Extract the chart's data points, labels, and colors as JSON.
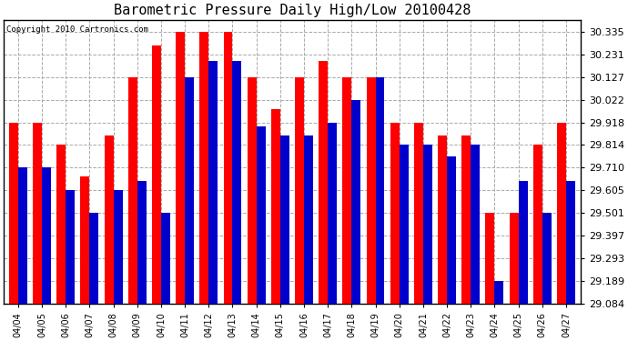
{
  "title": "Barometric Pressure Daily High/Low 20100428",
  "copyright": "Copyright 2010 Cartronics.com",
  "dates": [
    "04/04",
    "04/05",
    "04/06",
    "04/07",
    "04/08",
    "04/09",
    "04/10",
    "04/11",
    "04/12",
    "04/13",
    "04/14",
    "04/15",
    "04/16",
    "04/17",
    "04/18",
    "04/19",
    "04/20",
    "04/21",
    "04/22",
    "04/23",
    "04/24",
    "04/25",
    "04/26",
    "04/27"
  ],
  "highs": [
    29.918,
    29.918,
    29.814,
    29.67,
    29.856,
    30.127,
    30.27,
    30.335,
    30.335,
    30.335,
    30.127,
    29.98,
    30.127,
    30.2,
    30.127,
    30.127,
    29.918,
    29.918,
    29.856,
    29.856,
    29.501,
    29.501,
    29.814,
    29.918
  ],
  "lows": [
    29.71,
    29.71,
    29.605,
    29.501,
    29.605,
    29.65,
    29.501,
    30.127,
    30.2,
    30.2,
    29.9,
    29.856,
    29.856,
    29.918,
    30.022,
    30.127,
    29.814,
    29.814,
    29.76,
    29.814,
    29.189,
    29.65,
    29.501,
    29.65
  ],
  "high_color": "#ff0000",
  "low_color": "#0000cc",
  "background_color": "#ffffff",
  "grid_color": "#aaaaaa",
  "yticks": [
    29.084,
    29.189,
    29.293,
    29.397,
    29.501,
    29.605,
    29.71,
    29.814,
    29.918,
    30.022,
    30.127,
    30.231,
    30.335
  ],
  "ymin": 29.084,
  "ymax": 30.39,
  "bar_width": 0.38
}
